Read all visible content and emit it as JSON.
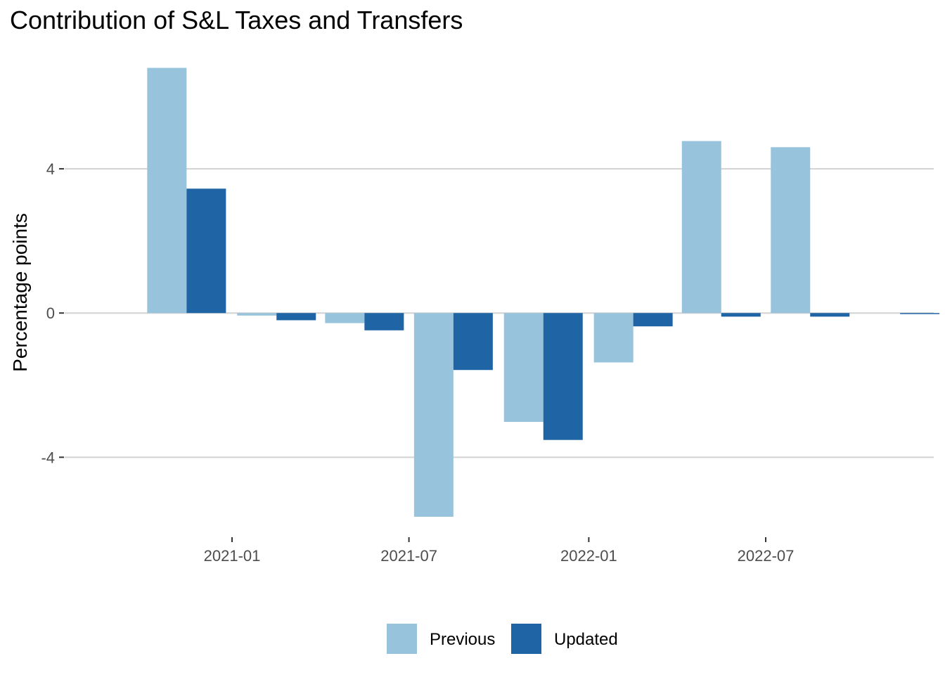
{
  "chart_data": {
    "type": "bar",
    "title": "Contribution of S&L Taxes and Transfers",
    "ylabel": "Percentage points",
    "xlabel": "",
    "ylim": [
      -6.1,
      7.2
    ],
    "yticks": [
      -4,
      0,
      4
    ],
    "x_ticks": [
      "2021-01",
      "2021-07",
      "2022-01",
      "2022-07"
    ],
    "categories": [
      "2020-10",
      "2021-01",
      "2021-04",
      "2021-07",
      "2021-10",
      "2022-01",
      "2022-04",
      "2022-07",
      "2022-10"
    ],
    "series": [
      {
        "name": "Previous",
        "color": "#97c3dc",
        "values": [
          6.8,
          -0.07,
          -0.28,
          -5.65,
          -3.02,
          -1.37,
          4.77,
          4.6,
          null
        ]
      },
      {
        "name": "Updated",
        "color": "#1f65a6",
        "values": [
          3.45,
          -0.2,
          -0.48,
          -1.58,
          -3.52,
          -0.37,
          -0.1,
          -0.1,
          -0.02
        ]
      }
    ],
    "grid": true,
    "legend": "bottom"
  }
}
